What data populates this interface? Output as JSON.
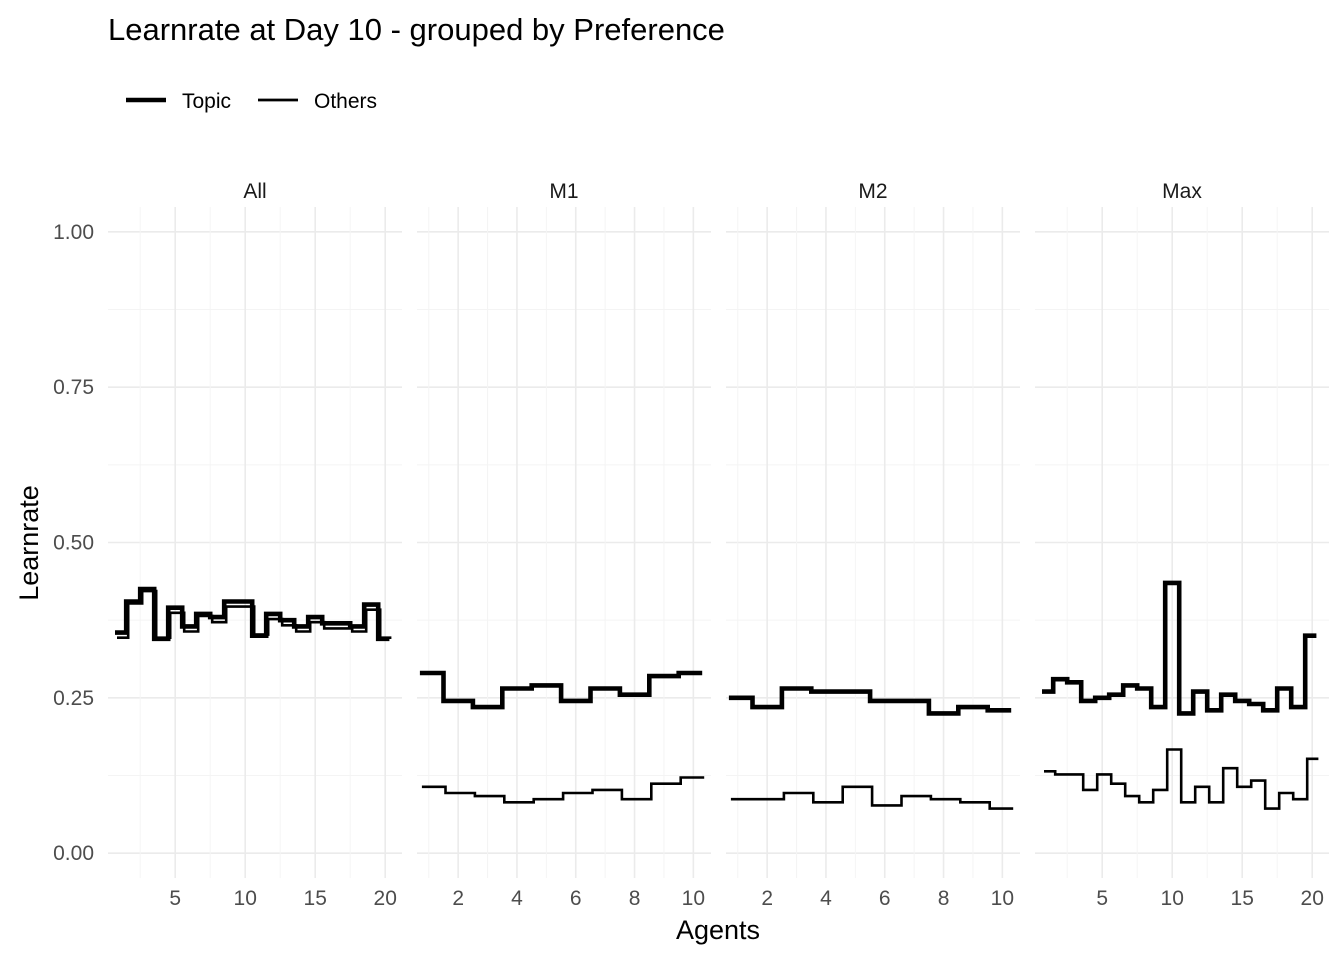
{
  "chart_data": {
    "type": "line",
    "title": "Learnrate at Day 10 - grouped by Preference",
    "xlabel": "Agents",
    "ylabel": "Learnrate",
    "ylim": [
      -0.04,
      1.04
    ],
    "y_ticks": [
      0.0,
      0.25,
      0.5,
      0.75,
      1.0
    ],
    "y_tick_labels": [
      "0.00",
      "0.25",
      "0.50",
      "0.75",
      "1.00"
    ],
    "grid": true,
    "legend": {
      "position": "top-left",
      "entries": [
        "Topic",
        "Others"
      ]
    },
    "panels": [
      {
        "label": "All",
        "xlim": [
          0.2,
          21.2
        ],
        "x_ticks": [
          5,
          10,
          15,
          20
        ],
        "x_tick_labels": [
          "5",
          "10",
          "15",
          "20"
        ],
        "series": [
          {
            "name": "Topic",
            "x": [
              1,
              2,
              3,
              4,
              5,
              6,
              7,
              8,
              9,
              10,
              11,
              12,
              13,
              14,
              15,
              16,
              17,
              18,
              19,
              20
            ],
            "values": [
              0.355,
              0.405,
              0.425,
              0.345,
              0.395,
              0.365,
              0.385,
              0.38,
              0.405,
              0.405,
              0.35,
              0.385,
              0.375,
              0.365,
              0.38,
              0.37,
              0.37,
              0.365,
              0.4,
              0.345
            ]
          },
          {
            "name": "Others",
            "x": [
              1,
              2,
              3,
              4,
              5,
              6,
              7,
              8,
              9,
              10,
              11,
              12,
              13,
              14,
              15,
              16,
              17,
              18,
              19,
              20
            ],
            "values": [
              0.35,
              0.405,
              0.425,
              0.35,
              0.39,
              0.36,
              0.385,
              0.375,
              0.4,
              0.4,
              0.355,
              0.38,
              0.37,
              0.36,
              0.375,
              0.365,
              0.365,
              0.36,
              0.395,
              0.35
            ]
          }
        ]
      },
      {
        "label": "M1",
        "xlim": [
          0.6,
          10.6
        ],
        "x_ticks": [
          2,
          4,
          6,
          8,
          10
        ],
        "x_tick_labels": [
          "2",
          "4",
          "6",
          "8",
          "10"
        ],
        "series": [
          {
            "name": "Topic",
            "x": [
              1,
              2,
              3,
              4,
              5,
              6,
              7,
              8,
              9,
              10
            ],
            "values": [
              0.29,
              0.245,
              0.235,
              0.265,
              0.27,
              0.245,
              0.265,
              0.255,
              0.285,
              0.29
            ]
          },
          {
            "name": "Others",
            "x": [
              1,
              2,
              3,
              4,
              5,
              6,
              7,
              8,
              9,
              10
            ],
            "values": [
              0.11,
              0.1,
              0.095,
              0.085,
              0.09,
              0.1,
              0.105,
              0.09,
              0.115,
              0.125
            ]
          }
        ]
      },
      {
        "label": "M2",
        "xlim": [
          0.6,
          10.6
        ],
        "x_ticks": [
          2,
          4,
          6,
          8,
          10
        ],
        "x_tick_labels": [
          "2",
          "4",
          "6",
          "8",
          "10"
        ],
        "series": [
          {
            "name": "Topic",
            "x": [
              1,
              2,
              3,
              4,
              5,
              6,
              7,
              8,
              9,
              10
            ],
            "values": [
              0.25,
              0.235,
              0.265,
              0.26,
              0.26,
              0.245,
              0.245,
              0.225,
              0.235,
              0.23
            ]
          },
          {
            "name": "Others",
            "x": [
              1,
              2,
              3,
              4,
              5,
              6,
              7,
              8,
              9,
              10
            ],
            "values": [
              0.09,
              0.09,
              0.1,
              0.085,
              0.11,
              0.08,
              0.095,
              0.09,
              0.085,
              0.075
            ]
          }
        ]
      },
      {
        "label": "Max",
        "xlim": [
          0.2,
          21.2
        ],
        "x_ticks": [
          5,
          10,
          15,
          20
        ],
        "x_tick_labels": [
          "5",
          "10",
          "15",
          "20"
        ],
        "series": [
          {
            "name": "Topic",
            "x": [
              1,
              2,
              3,
              4,
              5,
              6,
              7,
              8,
              9,
              10,
              11,
              12,
              13,
              14,
              15,
              16,
              17,
              18,
              19,
              20
            ],
            "values": [
              0.26,
              0.28,
              0.275,
              0.245,
              0.25,
              0.255,
              0.27,
              0.265,
              0.235,
              0.435,
              0.225,
              0.26,
              0.23,
              0.255,
              0.245,
              0.24,
              0.23,
              0.265,
              0.235,
              0.35
            ]
          },
          {
            "name": "Others",
            "x": [
              1,
              2,
              3,
              4,
              5,
              6,
              7,
              8,
              9,
              10,
              11,
              12,
              13,
              14,
              15,
              16,
              17,
              18,
              19,
              20
            ],
            "values": [
              0.135,
              0.13,
              0.13,
              0.105,
              0.13,
              0.115,
              0.095,
              0.085,
              0.105,
              0.17,
              0.085,
              0.11,
              0.085,
              0.14,
              0.11,
              0.12,
              0.075,
              0.1,
              0.09,
              0.155
            ]
          }
        ]
      }
    ]
  }
}
